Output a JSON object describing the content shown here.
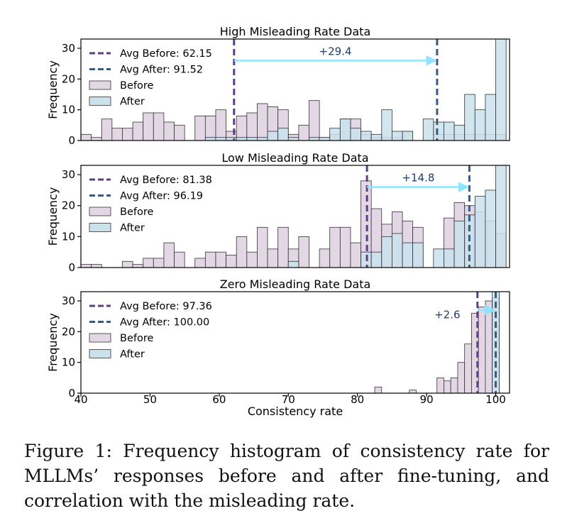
{
  "chart_data": [
    {
      "type": "bar",
      "title": "High Misleading Rate Data",
      "xlabel": "",
      "ylabel": "Frequency",
      "xlim": [
        40,
        102
      ],
      "ylim": [
        0,
        33
      ],
      "xticks": [],
      "yticks": [
        0,
        10,
        20,
        30
      ],
      "bin_width": 1.5,
      "series": [
        {
          "name": "Before",
          "color": "#e3d7e6",
          "x": [
            40,
            41.5,
            43,
            44.5,
            46,
            47.5,
            49,
            50.5,
            52,
            53.5,
            55,
            56.5,
            58,
            59.5,
            61,
            62.5,
            64,
            65.5,
            67,
            68.5,
            70,
            71.5,
            73,
            74.5,
            76,
            77.5,
            79,
            80.5,
            82,
            83.5,
            85,
            86.5,
            88,
            89.5,
            91,
            92.5,
            94,
            95.5,
            97,
            98.5,
            100
          ],
          "values": [
            2,
            1,
            7,
            4,
            4,
            6,
            9,
            9,
            6,
            5,
            0,
            8,
            8,
            10,
            3,
            8,
            9,
            12,
            11,
            10,
            2,
            5,
            13,
            1,
            2,
            7,
            7,
            2,
            1,
            1,
            1,
            3,
            0,
            0,
            2,
            2,
            2,
            2,
            2,
            2,
            2
          ]
        },
        {
          "name": "After",
          "color": "#c9e2ec",
          "x": [
            40,
            41.5,
            43,
            44.5,
            46,
            47.5,
            49,
            50.5,
            52,
            53.5,
            55,
            56.5,
            58,
            59.5,
            61,
            62.5,
            64,
            65.5,
            67,
            68.5,
            70,
            71.5,
            73,
            74.5,
            76,
            77.5,
            79,
            80.5,
            82,
            83.5,
            85,
            86.5,
            88,
            89.5,
            91,
            92.5,
            94,
            95.5,
            97,
            98.5,
            100
          ],
          "values": [
            0,
            0,
            0,
            0,
            0,
            0,
            0,
            0,
            0,
            0,
            0,
            0,
            1,
            1,
            1,
            1,
            1,
            1,
            3,
            4,
            1,
            0,
            1,
            1,
            4,
            7,
            4,
            3,
            2,
            10,
            3,
            3,
            0,
            7,
            6,
            6,
            5,
            15,
            10,
            15,
            33
          ]
        }
      ],
      "vlines": [
        {
          "x": 62.15,
          "name": "Avg Before: 62.15",
          "color": "#5e3c87"
        },
        {
          "x": 91.52,
          "name": "Avg After: 91.52",
          "color": "#3b5a80"
        }
      ],
      "annotation": {
        "text": "+29.4",
        "x_from": 62.15,
        "x_to": 91.52,
        "y": 26,
        "text_x": 76.8,
        "text_y": 29
      }
    },
    {
      "type": "bar",
      "title": "Low Misleading Rate Data",
      "xlabel": "",
      "ylabel": "Frequency",
      "xlim": [
        40,
        102
      ],
      "ylim": [
        0,
        33
      ],
      "xticks": [],
      "yticks": [
        0,
        10,
        20,
        30
      ],
      "bin_width": 1.5,
      "series": [
        {
          "name": "Before",
          "color": "#e3d7e6",
          "x": [
            40,
            41.5,
            46,
            47.5,
            49,
            50.5,
            52,
            53.5,
            56.5,
            58,
            59.5,
            61,
            62.5,
            64,
            65.5,
            67,
            68.5,
            70,
            71.5,
            74.5,
            76,
            77.5,
            79,
            80.5,
            82,
            83.5,
            85,
            86.5,
            88,
            89.5,
            91,
            92.5,
            94,
            95.5,
            97,
            98.5,
            100
          ],
          "values": [
            1,
            1,
            2,
            1,
            3,
            3,
            8,
            5,
            3,
            5,
            5,
            4,
            10,
            5,
            13,
            6,
            13,
            6,
            10,
            6,
            13,
            13,
            8,
            28,
            19,
            14,
            18,
            15,
            13,
            0,
            0,
            16,
            21,
            20,
            18,
            15,
            11
          ]
        },
        {
          "name": "After",
          "color": "#c9e2ec",
          "x": [
            70,
            80.5,
            82,
            83.5,
            85,
            86.5,
            88,
            89.5,
            91,
            92.5,
            94,
            95.5,
            97,
            98.5,
            100
          ],
          "values": [
            2,
            5,
            5,
            10,
            11,
            8,
            8,
            0,
            6,
            6,
            15,
            17,
            23,
            25,
            33
          ]
        }
      ],
      "vlines": [
        {
          "x": 81.38,
          "name": "Avg Before: 81.38",
          "color": "#5e3c87"
        },
        {
          "x": 96.19,
          "name": "Avg After: 96.19",
          "color": "#3b5a80"
        }
      ],
      "annotation": {
        "text": "+14.8",
        "x_from": 81.38,
        "x_to": 96.19,
        "y": 26,
        "text_x": 88.8,
        "text_y": 29
      }
    },
    {
      "type": "bar",
      "title": "Zero Misleading Rate Data",
      "xlabel": "Consistency rate",
      "ylabel": "Frequency",
      "xlim": [
        40,
        102
      ],
      "ylim": [
        0,
        33
      ],
      "xticks": [
        40,
        50,
        60,
        70,
        80,
        90,
        100
      ],
      "yticks": [
        0,
        10,
        20,
        30
      ],
      "bin_width": 1.0,
      "series": [
        {
          "name": "Before",
          "color": "#e3d7e6",
          "x": [
            82.5,
            87.5,
            91.5,
            92.5,
            93.5,
            94.5,
            95.5,
            96.5,
            97.5,
            98.5,
            99.5
          ],
          "values": [
            2,
            1,
            5,
            4,
            5,
            10,
            16,
            26,
            28,
            30,
            31
          ]
        },
        {
          "name": "After",
          "color": "#c9e2ec",
          "x": [
            99.5
          ],
          "values": [
            33
          ]
        }
      ],
      "vlines": [
        {
          "x": 97.36,
          "name": "Avg Before: 97.36",
          "color": "#5e3c87"
        },
        {
          "x": 100.0,
          "name": "Avg After: 100.00",
          "color": "#3b5a80"
        }
      ],
      "annotation": {
        "text": "+2.6",
        "x_from": 97.36,
        "x_to": 100.0,
        "y": 27,
        "text_x": 93.0,
        "text_y": 25.5
      }
    }
  ],
  "caption": "Figure 1: Frequency histogram of consistency rate for MLLMs’ responses before and after fine-tuning, and correlation with the misleading rate."
}
